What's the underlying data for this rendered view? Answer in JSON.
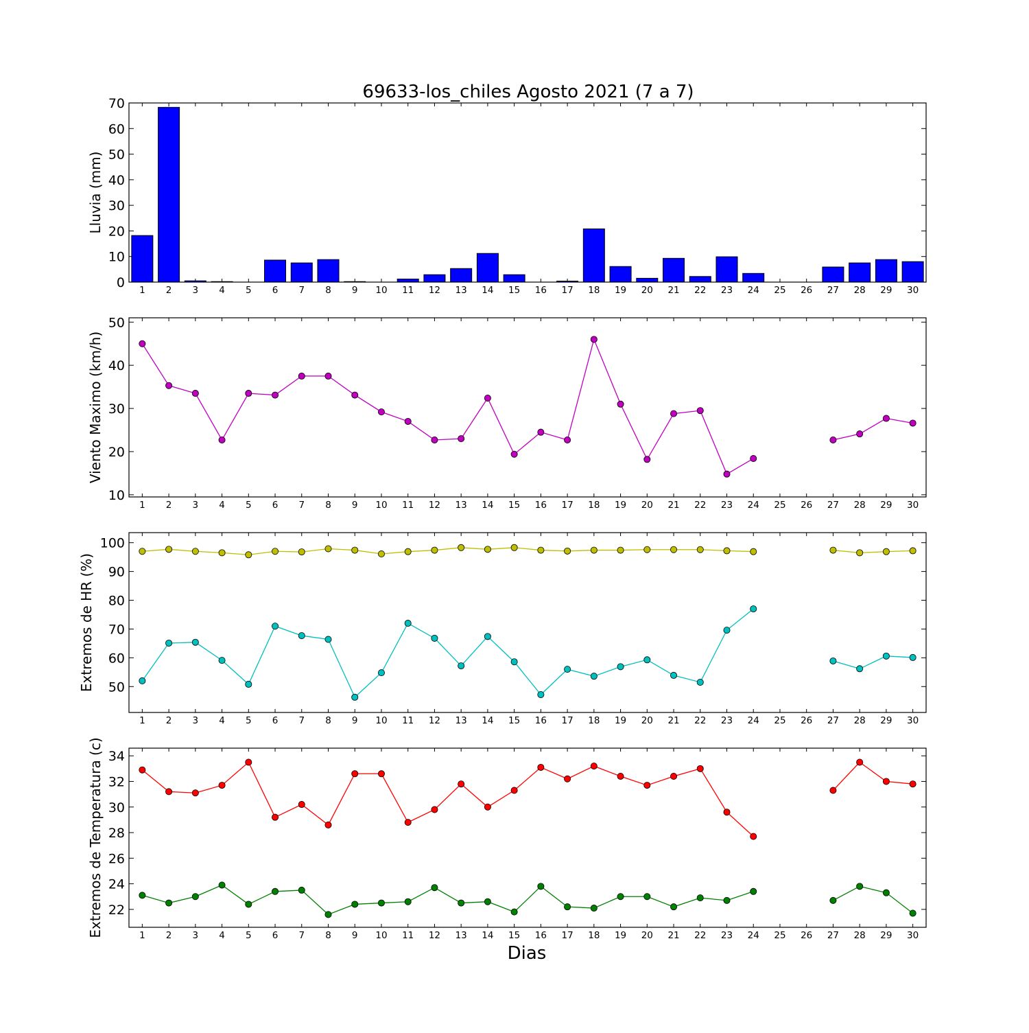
{
  "title": "69633-los_chiles Agosto 2021  (7 a 7)",
  "xlabel": "Dias",
  "chart_data": [
    {
      "type": "bar",
      "ylabel": "Lluvia (mm)",
      "ylim": [
        0,
        70
      ],
      "yticks": [
        0,
        10,
        20,
        30,
        40,
        50,
        60,
        70
      ],
      "x": [
        1,
        2,
        3,
        4,
        5,
        6,
        7,
        8,
        9,
        10,
        11,
        12,
        13,
        14,
        15,
        16,
        17,
        18,
        19,
        20,
        21,
        22,
        23,
        24,
        25,
        26,
        27,
        28,
        29,
        30
      ],
      "series": [
        {
          "color": "#0000ff",
          "values": [
            18.2,
            68.3,
            0.5,
            0.2,
            0,
            8.6,
            7.5,
            8.8,
            0.2,
            0,
            1.2,
            2.9,
            5.3,
            11.2,
            2.9,
            0,
            0.4,
            20.8,
            6.1,
            1.5,
            9.3,
            2.2,
            9.9,
            3.4,
            0,
            0,
            5.9,
            7.5,
            8.8,
            8.0
          ]
        }
      ]
    },
    {
      "type": "line",
      "ylabel": "Viento Maximo (km/h)",
      "ylim": [
        9.5,
        51
      ],
      "yticks": [
        10,
        20,
        30,
        40,
        50
      ],
      "x": [
        1,
        2,
        3,
        4,
        5,
        6,
        7,
        8,
        9,
        10,
        11,
        12,
        13,
        14,
        15,
        16,
        17,
        18,
        19,
        20,
        21,
        22,
        23,
        24,
        25,
        26,
        27,
        28,
        29,
        30
      ],
      "series": [
        {
          "color": "#bf00bf",
          "values": [
            45.0,
            35.3,
            33.5,
            22.7,
            33.5,
            33.1,
            37.5,
            37.5,
            33.1,
            29.2,
            27.0,
            22.7,
            23.0,
            32.4,
            19.4,
            24.5,
            22.7,
            46.0,
            31.0,
            18.2,
            28.8,
            29.5,
            14.8,
            18.4,
            null,
            null,
            22.7,
            24.1,
            27.7,
            26.6
          ]
        }
      ]
    },
    {
      "type": "line",
      "ylabel": "Extremos de HR (%)",
      "ylim": [
        41,
        103.5
      ],
      "yticks": [
        50,
        60,
        70,
        80,
        90,
        100
      ],
      "x": [
        1,
        2,
        3,
        4,
        5,
        6,
        7,
        8,
        9,
        10,
        11,
        12,
        13,
        14,
        15,
        16,
        17,
        18,
        19,
        20,
        21,
        22,
        23,
        24,
        25,
        26,
        27,
        28,
        29,
        30
      ],
      "series": [
        {
          "color": "#bfbf00",
          "values": [
            97.0,
            97.7,
            97.0,
            96.5,
            95.8,
            97.0,
            96.8,
            97.9,
            97.4,
            96.1,
            96.9,
            97.4,
            98.3,
            97.7,
            98.3,
            97.4,
            97.1,
            97.4,
            97.4,
            97.6,
            97.6,
            97.6,
            97.2,
            96.9,
            null,
            null,
            97.4,
            96.5,
            96.9,
            97.2
          ]
        },
        {
          "color": "#00bfbf",
          "values": [
            52.0,
            65.1,
            65.4,
            59.1,
            50.8,
            71.0,
            67.7,
            66.4,
            46.3,
            54.8,
            72.0,
            66.8,
            57.2,
            67.4,
            58.6,
            47.2,
            56.0,
            53.6,
            56.9,
            59.3,
            53.9,
            51.5,
            69.6,
            77.0,
            null,
            null,
            58.9,
            56.2,
            60.6,
            60.1
          ]
        }
      ]
    },
    {
      "type": "line",
      "ylabel": "Extremos de Temperatura (c)",
      "ylim": [
        20.6,
        34.6
      ],
      "yticks": [
        22,
        24,
        26,
        28,
        30,
        32,
        34
      ],
      "x": [
        1,
        2,
        3,
        4,
        5,
        6,
        7,
        8,
        9,
        10,
        11,
        12,
        13,
        14,
        15,
        16,
        17,
        18,
        19,
        20,
        21,
        22,
        23,
        24,
        25,
        26,
        27,
        28,
        29,
        30
      ],
      "series": [
        {
          "color": "#ff0000",
          "values": [
            32.9,
            31.2,
            31.1,
            31.7,
            33.5,
            29.2,
            30.2,
            28.6,
            32.6,
            32.6,
            28.8,
            29.8,
            31.8,
            30.0,
            31.3,
            33.1,
            32.2,
            33.2,
            32.4,
            31.7,
            32.4,
            33.0,
            29.6,
            27.7,
            null,
            null,
            31.3,
            33.5,
            32.0,
            31.8
          ]
        },
        {
          "color": "#008000",
          "values": [
            23.1,
            22.5,
            23.0,
            23.9,
            22.4,
            23.4,
            23.5,
            21.6,
            22.4,
            22.5,
            22.6,
            23.7,
            22.5,
            22.6,
            21.8,
            23.8,
            22.2,
            22.1,
            23.0,
            23.0,
            22.2,
            22.9,
            22.7,
            23.4,
            null,
            null,
            22.7,
            23.8,
            23.3,
            21.7
          ]
        }
      ]
    }
  ]
}
